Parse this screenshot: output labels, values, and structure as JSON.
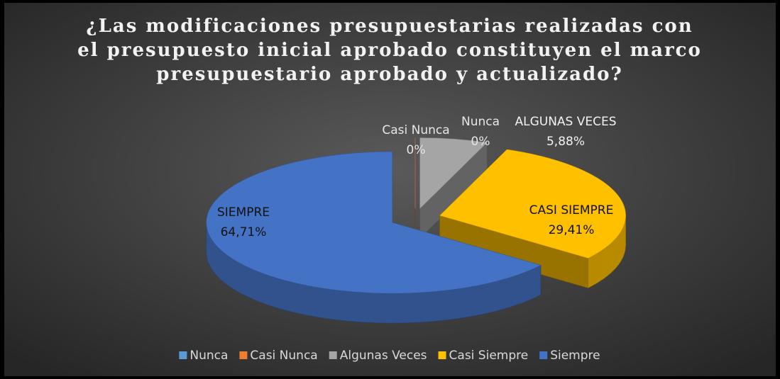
{
  "chart_data": {
    "type": "pie",
    "title": [
      "¿Las modificaciones presupuestarias realizadas con",
      "el presupuesto inicial aprobado constituyen el marco",
      "presupuestario aprobado y actualizado?"
    ],
    "categories": [
      "Nunca",
      "Casi Nunca",
      "Algunas Veces",
      "Casi Siempre",
      "Siempre"
    ],
    "values": [
      0,
      0,
      5.88,
      29.41,
      64.71
    ],
    "value_labels": [
      "0%",
      "0%",
      "5,88%",
      "29,41%",
      "64,71%"
    ],
    "data_label_names": [
      "Nunca",
      "Casi Nunca",
      "ALGUNAS VECES",
      "CASI SIEMPRE",
      "SIEMPRE"
    ],
    "colors": [
      "#5b9bd5",
      "#ed7d31",
      "#a5a5a5",
      "#ffc000",
      "#4472c4"
    ],
    "legend": "bottom",
    "three_d": true,
    "exploded": true
  }
}
